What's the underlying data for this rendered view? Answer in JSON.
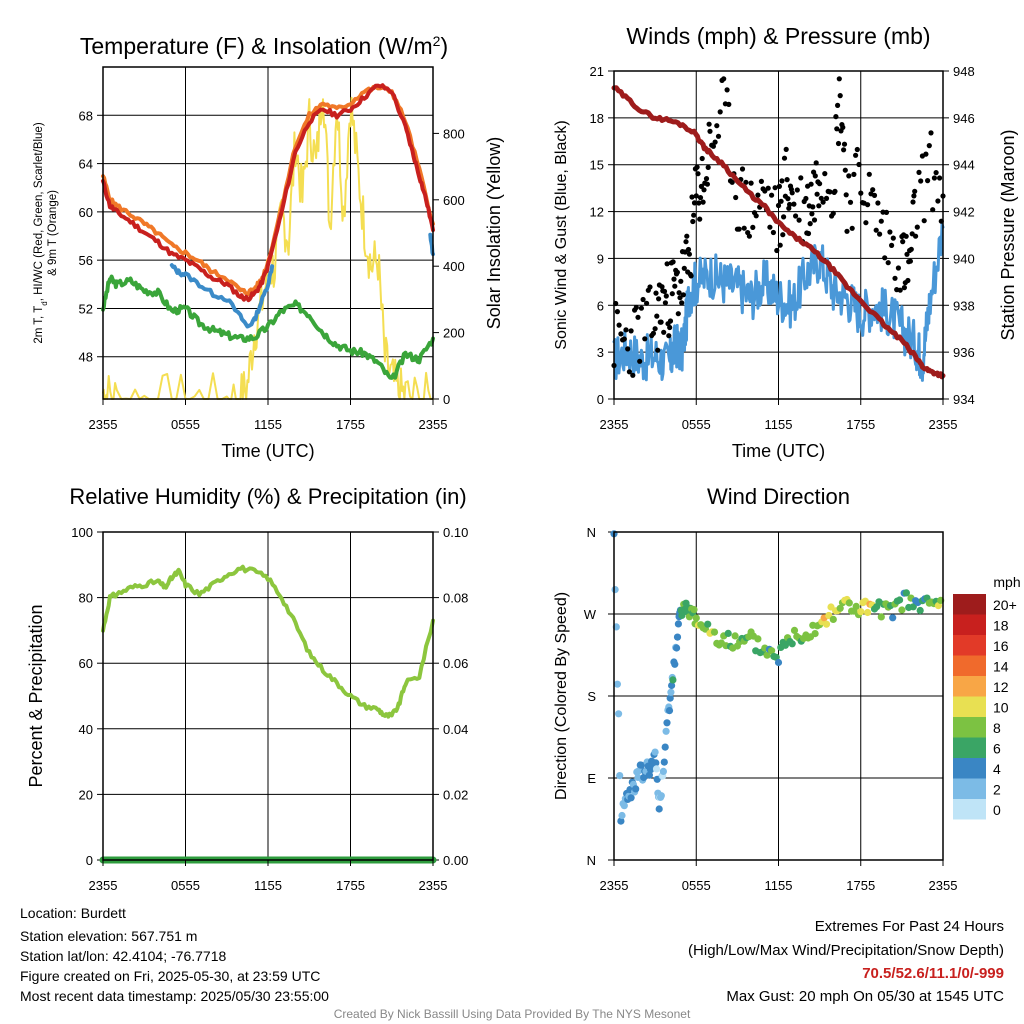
{
  "x_ticks": [
    "2355",
    "0555",
    "1155",
    "1755",
    "2355"
  ],
  "x_label": "Time (UTC)",
  "colors": {
    "temp_2m": "#c8201e",
    "dewpoint": "#3aa53a",
    "heat_index": "#3b8bc8",
    "temp_9m": "#f07828",
    "insolation": "#f4de52",
    "wind": "#4a98d8",
    "gust": "#000000",
    "pressure": "#9e1c1c",
    "rh": "#8cc63e",
    "precip": "#2e9c3e",
    "extremes": "#c8201e",
    "footer": "#888888"
  },
  "panels": {
    "temperature": {
      "title_main": "Temperature (F) & Insolation (W/m",
      "title_sup": "2",
      "title_end": ")",
      "ylabel_left_line1": "2m T, T",
      "ylabel_left_sub": "d",
      "ylabel_left_line1_end": ", HI/WC (Red, Green, Scarlet/Blue)",
      "ylabel_left_line2": "& 9m T (Orange)",
      "ylabel_right": "Solar Insolation (Yellow)",
      "left_ticks": [
        "48",
        "52",
        "56",
        "60",
        "64",
        "68"
      ],
      "right_ticks": [
        "0",
        "200",
        "400",
        "600",
        "800"
      ]
    },
    "winds": {
      "title": "Winds (mph) & Pressure (mb)",
      "ylabel_left": "Sonic Wind & Gust (Blue, Black)",
      "ylabel_right": "Station Pressure (Maroon)",
      "left_ticks": [
        "0",
        "3",
        "6",
        "9",
        "12",
        "15",
        "18",
        "21"
      ],
      "right_ticks": [
        "934",
        "936",
        "938",
        "940",
        "942",
        "944",
        "946",
        "948"
      ]
    },
    "humidity": {
      "title": "Relative Humidity (%) & Precipitation (in)",
      "ylabel_left": "Percent & Precipitation",
      "left_ticks": [
        "0",
        "20",
        "40",
        "60",
        "80",
        "100"
      ],
      "right_ticks": [
        "0.00",
        "0.02",
        "0.04",
        "0.06",
        "0.08",
        "0.10"
      ]
    },
    "direction": {
      "title": "Wind Direction",
      "ylabel_left": "Direction (Colored By Speed)",
      "left_ticks": [
        "N",
        "E",
        "S",
        "W",
        "N"
      ],
      "legend_title": "mph",
      "legend_labels": [
        "20+",
        "18",
        "16",
        "14",
        "12",
        "10",
        "8",
        "6",
        "4",
        "2",
        "0"
      ],
      "legend_colors": [
        "#9e1c1c",
        "#c8201e",
        "#e23a28",
        "#f06a2c",
        "#f8a646",
        "#e8e052",
        "#7cc242",
        "#3aa565",
        "#3a86c4",
        "#7cbbe6",
        "#bfe4f7"
      ]
    }
  },
  "info": {
    "location": "Location: Burdett",
    "elevation": "Station elevation: 567.751 m",
    "latlon": "Station lat/lon: 42.4104; -76.7718",
    "created": "Figure created on Fri, 2025-05-30, at 23:59 UTC",
    "recent": "Most recent data timestamp: 2025/05/30 23:55:00"
  },
  "extremes": {
    "line1": "Extremes For Past 24 Hours",
    "line2": "(High/Low/Max Wind/Precipitation/Snow Depth)",
    "values": "70.5/52.6/11.1/0/-999",
    "gust": "Max Gust: 20 mph On 05/30 at 1545 UTC"
  },
  "footer": "Created By Nick Bassill Using Data Provided By The NYS Mesonet",
  "chart_data": [
    {
      "type": "line",
      "title": "Temperature (F) & Insolation (W/m2)",
      "xlabel": "Time (UTC)",
      "ylabel": "2m T, Td, HI/WC (Red, Green, Scarlet/Blue) & 9m T (Orange)",
      "y2label": "Solar Insolation (Yellow)",
      "x_hours": [
        0,
        6,
        12,
        18,
        24
      ],
      "ylim": [
        44.5,
        72
      ],
      "y2lim": [
        0,
        1000
      ],
      "series": [
        {
          "name": "2m T",
          "axis": "left",
          "color": "#c8201e",
          "x": [
            0,
            0.5,
            1,
            2,
            3,
            4,
            5,
            6,
            7,
            8,
            9,
            10,
            10.5,
            11,
            11.5,
            12,
            13,
            14,
            15,
            16,
            17,
            18,
            19,
            20,
            21,
            22,
            22.5,
            23,
            23.5,
            24
          ],
          "y": [
            62.5,
            60.5,
            60,
            59.2,
            58.3,
            57.5,
            56.5,
            56,
            55.3,
            54.5,
            54,
            53,
            52.8,
            53.2,
            54,
            55.5,
            60,
            65,
            67.5,
            68.5,
            68,
            68.5,
            69.5,
            70.5,
            70,
            67,
            65,
            63,
            61,
            58.5
          ]
        },
        {
          "name": "9m T",
          "axis": "left",
          "color": "#f07828",
          "x": [
            0,
            0.5,
            1,
            2,
            3,
            4,
            5,
            6,
            7,
            8,
            9,
            10,
            10.5,
            11,
            11.5,
            12,
            13,
            14,
            15,
            16,
            17,
            18,
            19,
            20,
            21,
            22,
            23,
            24
          ],
          "y": [
            63,
            61,
            60.5,
            59.8,
            59,
            58.2,
            57.2,
            56.6,
            55.9,
            55,
            54.5,
            53.5,
            53.3,
            53.6,
            54.3,
            55.8,
            60.5,
            65.5,
            68,
            69,
            68.5,
            69,
            70,
            70.3,
            70,
            67.5,
            63.5,
            59
          ]
        },
        {
          "name": "Td",
          "axis": "left",
          "color": "#3aa53a",
          "x": [
            0,
            0.5,
            1,
            2,
            3,
            4,
            5,
            6,
            7,
            8,
            9,
            10,
            11,
            12,
            13,
            14,
            15,
            16,
            17,
            18,
            19,
            20,
            21,
            22,
            23,
            24
          ],
          "y": [
            52,
            54.5,
            54,
            54.3,
            53.5,
            53.3,
            51.8,
            52,
            50.8,
            50.2,
            49.8,
            49.5,
            49.6,
            50.5,
            51.8,
            52.3,
            51.5,
            50,
            49,
            48.5,
            48.3,
            47.5,
            46,
            48.2,
            47.8,
            49.5
          ]
        },
        {
          "name": "HI/WC",
          "axis": "left",
          "color": "#3b8bc8",
          "x": [
            5.0,
            5.5,
            6,
            7,
            8,
            9,
            10,
            10.5,
            11,
            11.5,
            12,
            12.3
          ],
          "y": [
            55.5,
            55,
            54.8,
            54,
            53.2,
            52.8,
            51.3,
            50.5,
            51,
            52.5,
            54,
            55.5
          ]
        },
        {
          "name": "HI/WC",
          "axis": "left",
          "color": "#3b8bc8",
          "x": [
            23.8,
            24
          ],
          "y": [
            58,
            56.5
          ]
        },
        {
          "name": "Solar Insolation",
          "axis": "right",
          "color": "#f4de52",
          "x": [
            0,
            0.3,
            1,
            3,
            5,
            7,
            9,
            10,
            10.5,
            11,
            11.5,
            12,
            12.5,
            13,
            13.5,
            14,
            14.5,
            15,
            15.5,
            16,
            16.5,
            17,
            17.5,
            18,
            18.5,
            19,
            19.5,
            20,
            20.5,
            21,
            21.5,
            22,
            23,
            24
          ],
          "y": [
            20,
            10,
            2,
            0,
            0,
            0,
            0,
            0,
            40,
            200,
            280,
            380,
            400,
            560,
            480,
            780,
            600,
            840,
            700,
            970,
            520,
            900,
            560,
            900,
            700,
            520,
            400,
            420,
            120,
            60,
            20,
            10,
            0,
            0
          ]
        }
      ]
    },
    {
      "type": "line",
      "title": "Winds (mph) & Pressure (mb)",
      "xlabel": "Time (UTC)",
      "ylabel": "Sonic Wind & Gust (Blue, Black)",
      "y2label": "Station Pressure (Maroon)",
      "x_hours": [
        0,
        6,
        12,
        18,
        24
      ],
      "ylim": [
        0,
        21
      ],
      "y2lim": [
        934,
        948
      ],
      "series": [
        {
          "name": "Sonic Wind",
          "axis": "left",
          "color": "#4a98d8",
          "x": [
            0,
            1,
            2,
            3,
            4,
            4.5,
            5,
            5.5,
            6,
            7,
            8,
            9,
            10,
            11,
            12,
            13,
            14,
            15,
            16,
            17,
            18,
            19,
            20,
            21,
            22,
            22.5,
            23,
            24
          ],
          "y": [
            2.5,
            3.2,
            2.5,
            2.8,
            2.2,
            3.5,
            3,
            6.8,
            7.5,
            8,
            7.5,
            7.2,
            6.5,
            7.5,
            6.5,
            6,
            8,
            9,
            7,
            6.5,
            5.5,
            6,
            5.5,
            4.5,
            3.5,
            2.5,
            6,
            11
          ]
        },
        {
          "name": "Gust",
          "axis": "left",
          "color": "#000000",
          "x": [
            0,
            1,
            2,
            3,
            3.5,
            4,
            4.5,
            5,
            5.5,
            6,
            6.5,
            7,
            8,
            9,
            10,
            11,
            12,
            12.5,
            13,
            14,
            14.5,
            15,
            16,
            16.5,
            17,
            18,
            19,
            20,
            21,
            21.5,
            22,
            23,
            24
          ],
          "y": [
            4,
            3.5,
            4.5,
            5,
            6,
            6.5,
            7,
            7.5,
            9,
            13,
            14,
            16,
            19,
            13,
            12,
            13,
            11,
            14,
            13,
            12,
            13,
            15,
            14,
            20,
            13,
            14,
            12,
            10,
            9,
            8,
            12,
            15,
            13
          ]
        },
        {
          "name": "Station Pressure",
          "axis": "right",
          "color": "#9e1c1c",
          "x": [
            0,
            1,
            2,
            3,
            4,
            5,
            6,
            6.5,
            7,
            8,
            9,
            10,
            11,
            12,
            13,
            14,
            15,
            16,
            17,
            18,
            19,
            20,
            21,
            22,
            22.5,
            23,
            23.5,
            24
          ],
          "y": [
            947.3,
            946.8,
            946.3,
            946,
            945.9,
            945.7,
            945.3,
            944.8,
            944.5,
            944,
            943.3,
            942.7,
            942.2,
            941.5,
            941,
            940.6,
            940.1,
            939.5,
            938.8,
            938.2,
            937.6,
            937,
            936.5,
            935.8,
            935.4,
            935.2,
            935.1,
            935
          ]
        }
      ]
    },
    {
      "type": "line",
      "title": "Relative Humidity (%) & Precipitation (in)",
      "ylabel": "Percent & Precipitation",
      "x_hours": [
        0,
        6,
        12,
        18,
        24
      ],
      "ylim": [
        0,
        100
      ],
      "y2lim": [
        0,
        0.1
      ],
      "series": [
        {
          "name": "Relative Humidity",
          "axis": "left",
          "color": "#8cc63e",
          "x": [
            0,
            0.5,
            1,
            2,
            3,
            4,
            4.5,
            5,
            5.5,
            6,
            7,
            8,
            9,
            10,
            11,
            12,
            13,
            14,
            15,
            16,
            17,
            18,
            19,
            20,
            20.5,
            21,
            21.5,
            22,
            23,
            24
          ],
          "y": [
            70,
            80,
            81,
            83,
            84,
            85,
            83,
            86,
            88,
            84,
            81,
            84,
            87,
            89,
            88,
            86,
            80,
            72,
            63,
            58,
            54,
            50,
            47,
            46,
            44,
            44,
            47,
            54,
            56,
            73
          ]
        },
        {
          "name": "Precipitation",
          "axis": "right",
          "color": "#2e9c3e",
          "x": [
            0,
            24
          ],
          "y": [
            0,
            0
          ]
        }
      ]
    },
    {
      "type": "scatter",
      "title": "Wind Direction",
      "ylabel": "Direction (Colored By Speed)",
      "x_hours": [
        0,
        6,
        12,
        18,
        24
      ],
      "ylim": [
        0,
        360
      ],
      "y_tick_labels": [
        "N",
        "E",
        "S",
        "W",
        "N"
      ],
      "series": [
        {
          "name": "Wind Direction",
          "x": [
            0,
            0.5,
            1,
            1.5,
            2,
            2.5,
            3,
            3.3,
            3.6,
            4,
            4.3,
            4.7,
            5,
            5.5,
            6,
            7,
            8,
            9,
            10,
            11,
            12,
            13,
            14,
            15,
            16,
            17,
            18,
            19,
            20,
            21,
            22,
            23,
            24
          ],
          "y": [
            355,
            50,
            70,
            85,
            95,
            100,
            110,
            60,
            95,
            170,
            200,
            265,
            270,
            275,
            265,
            250,
            245,
            235,
            240,
            230,
            225,
            245,
            250,
            260,
            275,
            280,
            275,
            275,
            270,
            285,
            280,
            280,
            280
          ],
          "speed": [
            2,
            2,
            3,
            3,
            3,
            4,
            2,
            2,
            3,
            3,
            4,
            5,
            6,
            7,
            8,
            8,
            7,
            6,
            7,
            6,
            6,
            7,
            8,
            10,
            9,
            8,
            10,
            7,
            6,
            6,
            4,
            8,
            9
          ]
        }
      ]
    }
  ]
}
